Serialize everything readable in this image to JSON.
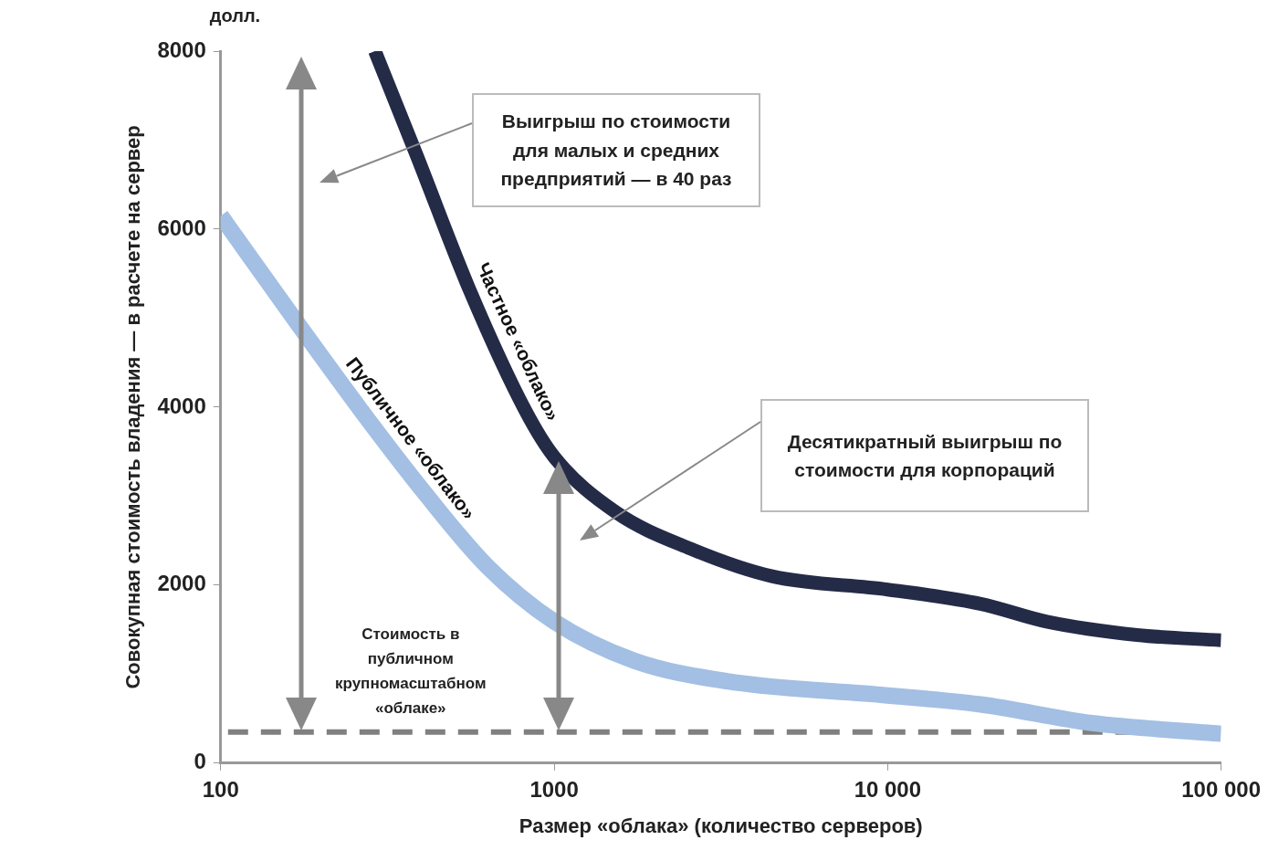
{
  "chart_data": {
    "type": "line",
    "xlabel": "Размер «облака» (количество серверов)",
    "ylabel": "Совокупная стоимость владения — в расчете на сервер",
    "xlim": [
      100,
      100000
    ],
    "xticks": [
      100,
      1000,
      {
        "value": 10000,
        "label": "10 000"
      },
      {
        "value": 100000,
        "label": "100 000"
      }
    ],
    "ylim": [
      0,
      8000
    ],
    "yticks": [
      0,
      2000,
      4000,
      6000,
      8000
    ],
    "log": "x",
    "marker": "none",
    "line_style": "solid",
    "series": [
      {
        "name": "Публичное «облако»",
        "color": "#a3bfe3",
        "x": [
          100,
          170,
          264,
          410,
          630,
          1000,
          1740,
          3300,
          10000,
          19000,
          41000,
          100000
        ],
        "values": [
          6150,
          4940,
          3960,
          3030,
          2210,
          1590,
          1150,
          920,
          760,
          660,
          450,
          330
        ]
      },
      {
        "name": "Частное «облако»",
        "color": "#232b47",
        "x": [
          290,
          385,
          560,
          820,
          1000,
          1530,
          2560,
          4500,
          10000,
          19000,
          30000,
          56000,
          100000
        ],
        "values": [
          8000,
          6850,
          5300,
          3960,
          3440,
          2820,
          2410,
          2100,
          1950,
          1790,
          1590,
          1440,
          1380
        ]
      }
    ],
    "ref_lines": [
      {
        "axis": "y",
        "value": 350,
        "label": "Стоимость в публичном крупномасштабном «облаке»",
        "color": "#808080",
        "line_style": "dashed"
      }
    ],
    "annotations": [
      "долл.",
      "Выигрыш по стоимости для малых и средних предприятий — в 40 раз",
      "Десятикратный выигрыш по стоимости для корпораций"
    ]
  }
}
